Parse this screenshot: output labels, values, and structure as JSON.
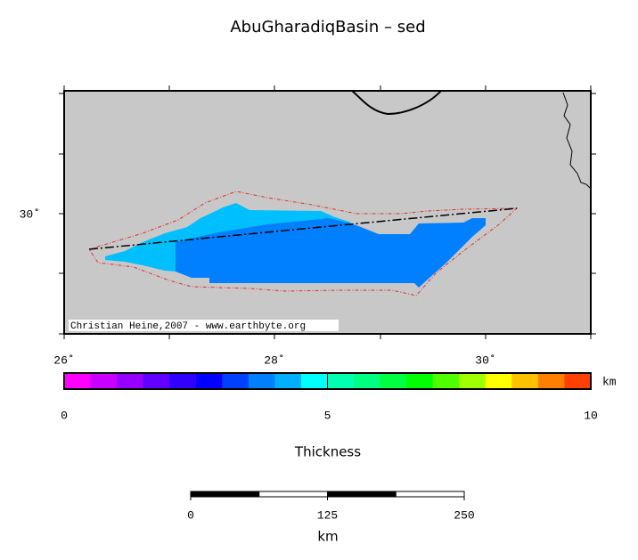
{
  "title": "AbuGharadiqBasin – sed",
  "map": {
    "lon_ticks": [
      "26˚",
      "28˚",
      "30˚"
    ],
    "lat_ticks": [
      "30˚"
    ],
    "credit": "Christian Heine,2007 - www.earthbyte.org"
  },
  "colorbar": {
    "unit": "km",
    "ticks": [
      0,
      5,
      10
    ],
    "label": "Thickness",
    "colors": [
      "#ff00ff",
      "#c800ff",
      "#9600ff",
      "#6400ff",
      "#3200ff",
      "#0000ff",
      "#0040ff",
      "#0080ff",
      "#00b0ff",
      "#00ffff",
      "#00ffb0",
      "#00ff80",
      "#00ff40",
      "#00ff00",
      "#50ff00",
      "#a0ff00",
      "#ffff00",
      "#ffc000",
      "#ff8000",
      "#ff4000"
    ]
  },
  "scalebar": {
    "ticks": [
      0,
      125,
      250
    ],
    "unit": "km"
  }
}
